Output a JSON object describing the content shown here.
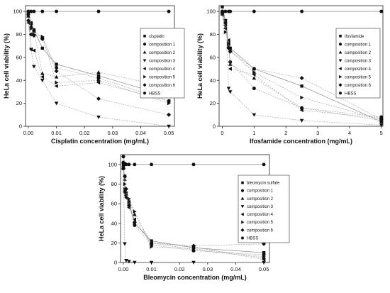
{
  "chart_data": [
    {
      "type": "scatter",
      "xlabel": "Cisplatin concentration (mg/mL)",
      "ylabel": "HeLa cell viability (%)",
      "xlim": [
        -0.001,
        0.052
      ],
      "ylim": [
        0,
        105
      ],
      "xticks": [
        0.0,
        0.01,
        0.02,
        0.03,
        0.04,
        0.05
      ],
      "xtick_labels": [
        "0.00",
        "0.01",
        "0.02",
        "0.03",
        "0.04",
        "0.05"
      ],
      "yticks": [
        0,
        20,
        40,
        60,
        80,
        100
      ],
      "ytick_labels": [
        "0",
        "20",
        "40",
        "60",
        "80",
        "100"
      ],
      "legend_position": "top-right",
      "series": [
        {
          "name": "cisplatin",
          "marker": "square",
          "x": [
            0,
            0.001,
            0.002,
            0.005,
            0.01,
            0.025,
            0.05
          ],
          "y": [
            98,
            90,
            84,
            68,
            54,
            44,
            26
          ]
        },
        {
          "name": "composition 1",
          "marker": "circle",
          "x": [
            0,
            0.001,
            0.002,
            0.005,
            0.01,
            0.025,
            0.05
          ],
          "y": [
            100,
            89,
            83,
            77,
            51,
            42,
            22
          ]
        },
        {
          "name": "composition 2",
          "marker": "triangle-up",
          "x": [
            0,
            0.001,
            0.002,
            0.005,
            0.01,
            0.025,
            0.05
          ],
          "y": [
            96,
            87,
            83,
            46,
            43,
            47,
            34
          ]
        },
        {
          "name": "composition 3",
          "marker": "triangle-down",
          "x": [
            0,
            0.001,
            0.002,
            0.005,
            0.01,
            0.025,
            0.05
          ],
          "y": [
            96,
            67,
            52,
            40,
            20,
            8,
            0
          ]
        },
        {
          "name": "composition 4",
          "marker": "triangle-left",
          "x": [
            0,
            0.001,
            0.002,
            0.005,
            0.01,
            0.025,
            0.05
          ],
          "y": [
            90,
            67,
            66,
            43,
            35,
            38,
            22
          ]
        },
        {
          "name": "composition 5",
          "marker": "triangle-right",
          "x": [
            0,
            0.001,
            0.002,
            0.005,
            0.01,
            0.025,
            0.05
          ],
          "y": [
            97,
            85,
            80,
            78,
            38,
            40,
            20
          ]
        },
        {
          "name": "composition 6",
          "marker": "diamond",
          "x": [
            0,
            0.001,
            0.002,
            0.005,
            0.01,
            0.025,
            0.05
          ],
          "y": [
            92,
            80,
            79,
            76,
            48,
            24,
            10
          ]
        },
        {
          "name": "HBSS",
          "marker": "hexagon",
          "x": [
            0,
            0.001,
            0.002,
            0.005,
            0.01,
            0.025,
            0.05
          ],
          "y": [
            100,
            100,
            100,
            100,
            100,
            100,
            100
          ]
        }
      ]
    },
    {
      "type": "scatter",
      "xlabel": "Ifosfamide concentration (mg/mL)",
      "ylabel": "HeLa cell viability (%)",
      "xlim": [
        -0.1,
        5.05
      ],
      "ylim": [
        0,
        105
      ],
      "xticks": [
        0,
        1,
        2,
        3,
        4,
        5
      ],
      "xtick_labels": [
        "0",
        "1",
        "2",
        "3",
        "4",
        "5"
      ],
      "yticks": [
        0,
        20,
        40,
        60,
        80,
        100
      ],
      "ytick_labels": [
        "0",
        "20",
        "40",
        "60",
        "80",
        "100"
      ],
      "legend_position": "top-right",
      "series": [
        {
          "name": "ifosfamide",
          "marker": "square",
          "x": [
            0,
            0.1,
            0.2,
            0.25,
            1,
            2.5,
            5
          ],
          "y": [
            104,
            92,
            73,
            68,
            50,
            35,
            4
          ]
        },
        {
          "name": "composition 1",
          "marker": "circle",
          "x": [
            0,
            0.1,
            0.2,
            0.25,
            1,
            2.5,
            5
          ],
          "y": [
            100,
            88,
            71,
            56,
            33,
            16,
            8
          ]
        },
        {
          "name": "composition 2",
          "marker": "triangle-up",
          "x": [
            0,
            0.1,
            0.2,
            0.25,
            1,
            2.5,
            5
          ],
          "y": [
            98,
            86,
            70,
            54,
            42,
            16,
            5
          ]
        },
        {
          "name": "composition 3",
          "marker": "triangle-down",
          "x": [
            0,
            0.1,
            0.2,
            0.25,
            1,
            2.5,
            5
          ],
          "y": [
            99,
            92,
            33,
            30,
            10,
            5,
            1
          ]
        },
        {
          "name": "composition 4",
          "marker": "triangle-left",
          "x": [
            0,
            0.1,
            0.2,
            0.25,
            1,
            2.5,
            5
          ],
          "y": [
            97,
            85,
            75,
            50,
            45,
            14,
            7
          ]
        },
        {
          "name": "composition 5",
          "marker": "triangle-right",
          "x": [
            0,
            0.1,
            0.2,
            0.25,
            1,
            2.5,
            5
          ],
          "y": [
            98,
            82,
            72,
            66,
            47,
            25,
            6
          ]
        },
        {
          "name": "composition 6",
          "marker": "diamond",
          "x": [
            0,
            0.1,
            0.2,
            0.25,
            1,
            2.5,
            5
          ],
          "y": [
            99,
            90,
            68,
            65,
            50,
            42,
            6
          ]
        },
        {
          "name": "HBSS",
          "marker": "hexagon",
          "x": [
            0,
            0.1,
            0.2,
            0.25,
            1,
            2.5,
            5
          ],
          "y": [
            100,
            100,
            100,
            100,
            100,
            100,
            100
          ]
        }
      ]
    },
    {
      "type": "scatter",
      "xlabel": "Bleomycin concentration (mg/mL)",
      "ylabel": "HeLa cell viability (%)",
      "xlim": [
        -0.001,
        0.052
      ],
      "ylim": [
        0,
        110
      ],
      "xticks": [
        0.0,
        0.01,
        0.02,
        0.03,
        0.04,
        0.05
      ],
      "xtick_labels": [
        "0.00",
        "0.01",
        "0.02",
        "0.03",
        "0.04",
        "0.05"
      ],
      "yticks": [
        0,
        20,
        40,
        60,
        80,
        100
      ],
      "ytick_labels": [
        "0",
        "20",
        "40",
        "60",
        "80",
        "100"
      ],
      "legend_position": "right",
      "series": [
        {
          "name": "bleomycin sulfate",
          "marker": "square",
          "x": [
            0,
            0.0005,
            0.001,
            0.002,
            0.004,
            0.01,
            0.025,
            0.05
          ],
          "y": [
            100,
            75,
            70,
            62,
            40,
            22,
            15,
            10
          ]
        },
        {
          "name": "composition 1",
          "marker": "circle",
          "x": [
            0,
            0.0005,
            0.001,
            0.002,
            0.004,
            0.01,
            0.025,
            0.05
          ],
          "y": [
            102,
            72,
            68,
            60,
            38,
            18,
            12,
            8
          ]
        },
        {
          "name": "composition 2",
          "marker": "triangle-up",
          "x": [
            0,
            0.0005,
            0.001,
            0.002,
            0.004,
            0.01,
            0.025,
            0.05
          ],
          "y": [
            96,
            85,
            70,
            63,
            49,
            20,
            13,
            5
          ]
        },
        {
          "name": "composition 3",
          "marker": "triangle-down",
          "x": [
            0,
            0.0005,
            0.001,
            0.002,
            0.004,
            0.01,
            0.025,
            0.05
          ],
          "y": [
            100,
            19,
            2,
            1,
            0,
            0,
            0,
            0
          ]
        },
        {
          "name": "composition 4",
          "marker": "triangle-left",
          "x": [
            0,
            0.0005,
            0.001,
            0.002,
            0.004,
            0.01,
            0.025,
            0.05
          ],
          "y": [
            98,
            88,
            66,
            56,
            44,
            20,
            16,
            3
          ]
        },
        {
          "name": "composition 5",
          "marker": "triangle-right",
          "x": [
            0,
            0.0005,
            0.001,
            0.002,
            0.004,
            0.01,
            0.025,
            0.05
          ],
          "y": [
            96,
            80,
            72,
            65,
            52,
            16,
            14,
            6
          ]
        },
        {
          "name": "composition 6",
          "marker": "diamond",
          "x": [
            0,
            0.0005,
            0.001,
            0.002,
            0.004,
            0.01,
            0.025,
            0.05
          ],
          "y": [
            96,
            88,
            75,
            58,
            41,
            20,
            17,
            19
          ]
        },
        {
          "name": "HBSS",
          "marker": "hexagon",
          "x": [
            0,
            0.0005,
            0.001,
            0.002,
            0.004,
            0.01,
            0.025,
            0.05
          ],
          "y": [
            108,
            101,
            100,
            100,
            100,
            100,
            100,
            100
          ]
        }
      ]
    }
  ]
}
